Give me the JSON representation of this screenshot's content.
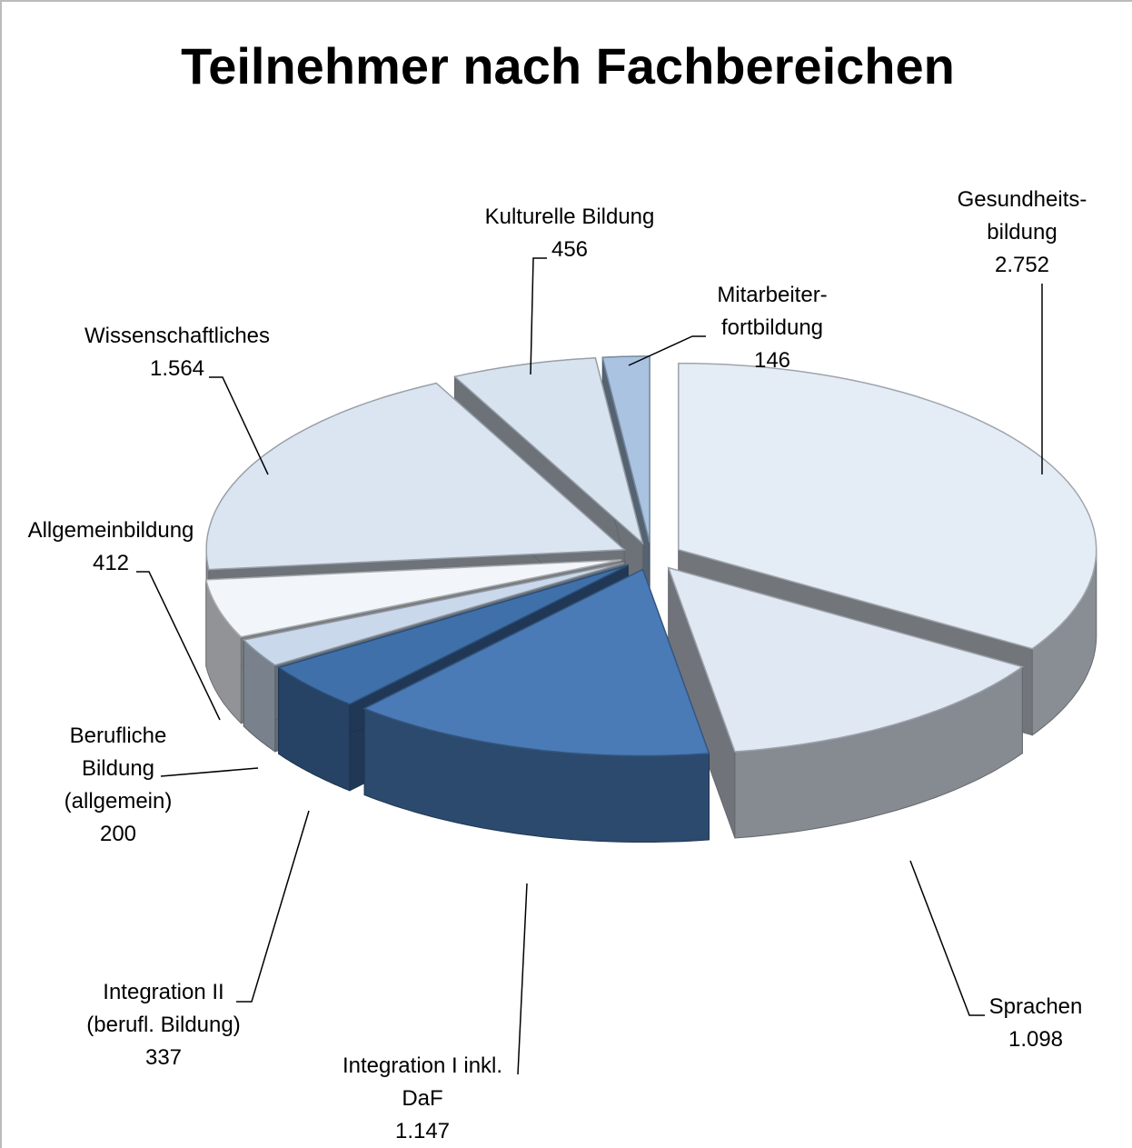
{
  "chart_data": {
    "type": "pie3d",
    "title": "Teilnehmer nach Fachbereichen",
    "categories": [
      "Gesundheits-\nbildung",
      "Sprachen",
      "Integration I inkl.\nDaF",
      "Integration II\n(berufl. Bildung)",
      "Berufliche\nBildung\n(allgemein)",
      "Allgemeinbildung",
      "Wissenschaftliches",
      "Kulturelle Bildung",
      "Mitarbeiter-\nfortbildung"
    ],
    "values": [
      2752,
      1098,
      1147,
      337,
      200,
      412,
      1564,
      456,
      146
    ],
    "value_labels": [
      "2.752",
      "1.098",
      "1.147",
      "337",
      "200",
      "412",
      "1.564",
      "456",
      "146"
    ],
    "colors": [
      "#e4ecf6",
      "#dfe8f3",
      "#4a7bb7",
      "#3f70aa",
      "#c9d8ea",
      "#f2f5fa",
      "#dbe5f1",
      "#d8e3f0",
      "#a9c3e1"
    ]
  }
}
